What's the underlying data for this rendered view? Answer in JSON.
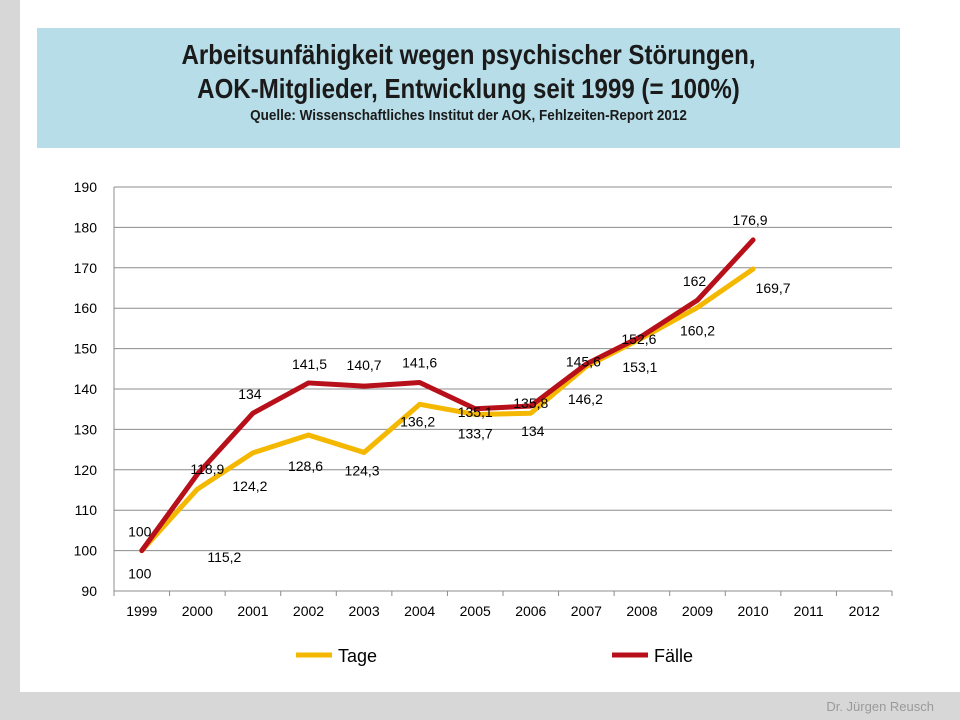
{
  "slide": {
    "title_line1": "Arbeitsunfähigkeit wegen psychischer Störungen,",
    "title_line2": "AOK-Mitglieder, Entwicklung seit 1999 (= 100%)",
    "subtitle": "Quelle: Wissenschaftliches Institut der AOK, Fehlzeiten-Report 2012",
    "footer": "Dr. Jürgen Reusch"
  },
  "chart_data": {
    "type": "line",
    "x": [
      "1999",
      "2000",
      "2001",
      "2002",
      "2003",
      "2004",
      "2005",
      "2006",
      "2007",
      "2008",
      "2009",
      "2010",
      "2011",
      "2012"
    ],
    "ylim": [
      90,
      190
    ],
    "yticks": [
      90,
      100,
      110,
      120,
      130,
      140,
      150,
      160,
      170,
      180,
      190
    ],
    "grid": true,
    "legend": "bottom",
    "series": [
      {
        "name": "Tage",
        "color": "#f5b800",
        "values": [
          100,
          115.2,
          124.2,
          128.6,
          124.3,
          136.2,
          133.7,
          134,
          145.6,
          152.6,
          160.2,
          169.7,
          null,
          null
        ],
        "labels": [
          "100",
          "115,2",
          "124,2",
          "128,6",
          "124,3",
          "136,2",
          "133,7",
          "134",
          "145,6",
          "152,6",
          "160,2",
          "169,7",
          "",
          ""
        ]
      },
      {
        "name": "Fälle",
        "color": "#b8101a",
        "values": [
          100,
          118.9,
          134,
          141.5,
          140.7,
          141.6,
          135.1,
          135.8,
          146.2,
          153.1,
          162,
          176.9,
          null,
          null
        ],
        "labels": [
          "100",
          "118,9",
          "134",
          "141,5",
          "140,7",
          "141,6",
          "135,1",
          "135,8",
          "146,2",
          "153,1",
          "162",
          "176,9",
          "",
          ""
        ]
      }
    ]
  }
}
